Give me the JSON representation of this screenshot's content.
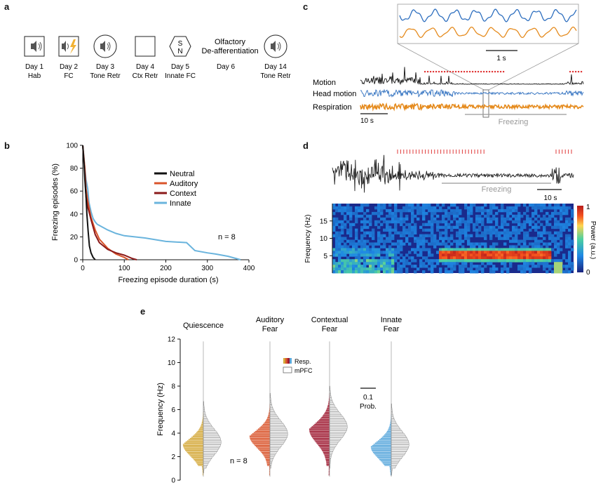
{
  "panel_labels": {
    "a": "a",
    "b": "b",
    "c": "c",
    "d": "d",
    "e": "e"
  },
  "timeline": {
    "days": [
      {
        "icon": "speaker",
        "day": "Day 1",
        "label": "Hab"
      },
      {
        "icon": "speaker-shock",
        "day": "Day 2",
        "label": "FC"
      },
      {
        "icon": "speaker-circle",
        "day": "Day 3",
        "label": "Tone Retr"
      },
      {
        "icon": "box",
        "day": "Day 4",
        "label": "Ctx Retr"
      },
      {
        "icon": "odor-hexagon",
        "day": "Day 5",
        "label": "Innate FC"
      },
      {
        "icon": "none",
        "day": "Day 6",
        "label": ""
      },
      {
        "icon": "speaker-circle",
        "day": "Day 14",
        "label": "Tone Retr"
      }
    ],
    "olfactory_line1": "Olfactory",
    "olfactory_line2": "De-afferentiation",
    "hexagon_letters": {
      "s": "S",
      "n": "N"
    }
  },
  "panel_b": {
    "chart_data": {
      "type": "line",
      "title": "",
      "xlabel": "Freezing episode duration (s)",
      "ylabel": "Freezing episodes (%)",
      "xlim": [
        0,
        400
      ],
      "ylim": [
        0,
        100
      ],
      "xticks": [
        "0",
        "100",
        "200",
        "300",
        "400"
      ],
      "yticks": [
        "0",
        "20",
        "40",
        "60",
        "80",
        "100"
      ],
      "legend": "top-right",
      "annotation": "n = 8",
      "series": [
        {
          "name": "Neutral",
          "color": "#111111",
          "x": [
            0,
            3,
            5,
            8,
            10,
            13,
            16,
            20,
            25,
            30
          ],
          "y": [
            100,
            85,
            70,
            55,
            40,
            25,
            12,
            6,
            2,
            0
          ]
        },
        {
          "name": "Auditory",
          "color": "#d9542b",
          "x": [
            0,
            5,
            8,
            12,
            15,
            20,
            30,
            40,
            60,
            80,
            100,
            110
          ],
          "y": [
            100,
            80,
            62,
            52,
            46,
            37,
            26,
            18,
            10,
            5,
            2,
            0
          ]
        },
        {
          "name": "Context",
          "color": "#8b1a1a",
          "x": [
            0,
            5,
            8,
            12,
            15,
            20,
            30,
            40,
            60,
            80,
            100,
            120,
            130
          ],
          "y": [
            100,
            75,
            55,
            46,
            42,
            35,
            22,
            15,
            9,
            6,
            4,
            1,
            0
          ]
        },
        {
          "name": "Innate",
          "color": "#6ab4dd",
          "x": [
            0,
            5,
            8,
            12,
            15,
            20,
            25,
            30,
            35,
            40,
            60,
            80,
            100,
            150,
            200,
            250,
            270,
            300,
            320,
            350,
            370,
            380
          ],
          "y": [
            100,
            80,
            70,
            62,
            50,
            42,
            36,
            33,
            31,
            30,
            26,
            23,
            21,
            19,
            16,
            15,
            8,
            6,
            5,
            3,
            1,
            0
          ]
        }
      ]
    }
  },
  "panel_c": {
    "labels": {
      "motion": "Motion",
      "head": "Head motion",
      "resp": "Respiration"
    },
    "inset_scale": "1 s",
    "scale": "10 s",
    "freezing": "Freezing",
    "colors": {
      "head": "#2e6fbf",
      "resp": "#e58b1e",
      "marker": "#e03a3a",
      "freeze": "#999999"
    }
  },
  "panel_d": {
    "scale": "10 s",
    "freezing": "Freezing",
    "chart_data": {
      "type": "heatmap",
      "ylabel": "Frequency (Hz)",
      "yticks": [
        "5",
        "10",
        "15"
      ],
      "colorbar_label": "Power (a.u.)",
      "colorbar_ticks": [
        "0",
        "1"
      ],
      "dominant_band_hz": 5
    }
  },
  "panel_e": {
    "chart_data": {
      "type": "bar",
      "ylabel": "Frequency (Hz)",
      "ylim": [
        0,
        12
      ],
      "yticks": [
        "0",
        "2",
        "4",
        "6",
        "8",
        "10",
        "12"
      ],
      "groups": [
        {
          "name_line1": "Quiescence",
          "name_line2": "",
          "color": "#d4a93a",
          "peak": 3.0
        },
        {
          "name_line1": "Auditory",
          "name_line2": "Fear",
          "color": "#d9542b",
          "peak": 3.7
        },
        {
          "name_line1": "Contextual",
          "name_line2": "Fear",
          "color": "#9e1b32",
          "peak": 4.3
        },
        {
          "name_line1": "Innate",
          "name_line2": "Fear",
          "color": "#5aa8dc",
          "peak": 2.8
        }
      ],
      "legend": {
        "resp": "Resp.",
        "mpfc": "mPFC"
      },
      "scale_value": "0.1",
      "scale_label": "Prob.",
      "annotation": "n = 8"
    }
  }
}
